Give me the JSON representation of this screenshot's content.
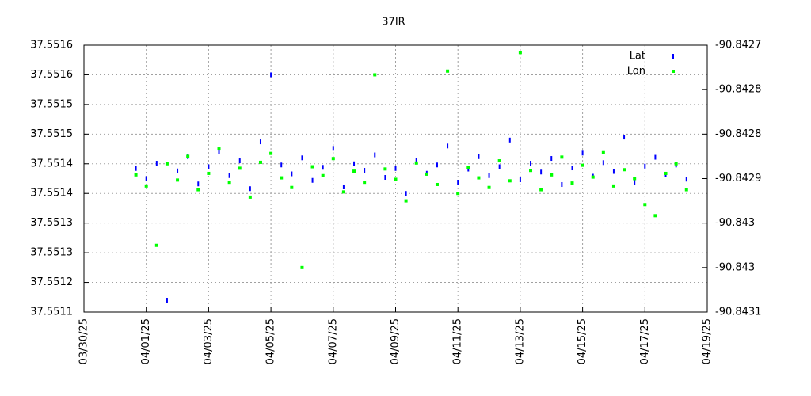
{
  "chart_data": {
    "type": "scatter",
    "title": "37IR",
    "x": [
      "2025-03-31T16:00",
      "2025-04-01T00:00",
      "2025-04-01T08:00",
      "2025-04-01T16:00",
      "2025-04-02T00:00",
      "2025-04-02T08:00",
      "2025-04-02T16:00",
      "2025-04-03T00:00",
      "2025-04-03T08:00",
      "2025-04-03T16:00",
      "2025-04-04T00:00",
      "2025-04-04T08:00",
      "2025-04-04T16:00",
      "2025-04-05T00:00",
      "2025-04-05T08:00",
      "2025-04-05T16:00",
      "2025-04-06T00:00",
      "2025-04-06T08:00",
      "2025-04-06T16:00",
      "2025-04-07T00:00",
      "2025-04-07T08:00",
      "2025-04-07T16:00",
      "2025-04-08T00:00",
      "2025-04-08T08:00",
      "2025-04-08T16:00",
      "2025-04-09T00:00",
      "2025-04-09T08:00",
      "2025-04-09T16:00",
      "2025-04-10T00:00",
      "2025-04-10T08:00",
      "2025-04-10T16:00",
      "2025-04-11T00:00",
      "2025-04-11T08:00",
      "2025-04-11T16:00",
      "2025-04-12T00:00",
      "2025-04-12T08:00",
      "2025-04-12T16:00",
      "2025-04-13T00:00",
      "2025-04-13T08:00",
      "2025-04-13T16:00",
      "2025-04-14T00:00",
      "2025-04-14T08:00",
      "2025-04-14T16:00",
      "2025-04-15T00:00",
      "2025-04-15T08:00",
      "2025-04-15T16:00",
      "2025-04-16T00:00",
      "2025-04-16T08:00",
      "2025-04-16T16:00",
      "2025-04-17T00:00",
      "2025-04-17T08:00",
      "2025-04-17T16:00",
      "2025-04-18T00:00",
      "2025-04-18T08:00"
    ],
    "series": [
      {
        "name": "Lat",
        "color": "#0000ff",
        "axis": "y",
        "values": [
          37.551392,
          37.551375,
          37.551401,
          37.55117,
          37.551388,
          37.551412,
          37.551366,
          37.551395,
          37.55142,
          37.55138,
          37.551405,
          37.551358,
          37.551437,
          37.55155,
          37.551398,
          37.551383,
          37.55141,
          37.551372,
          37.551394,
          37.551426,
          37.551361,
          37.5514,
          37.551389,
          37.551415,
          37.551377,
          37.551392,
          37.55135,
          37.551406,
          37.551384,
          37.551398,
          37.55143,
          37.551369,
          37.551391,
          37.551412,
          37.55138,
          37.551395,
          37.55144,
          37.551373,
          37.551401,
          37.551386,
          37.551409,
          37.551365,
          37.551393,
          37.551418,
          37.551379,
          37.551402,
          37.551387,
          37.551445,
          37.551369,
          37.551396,
          37.551411,
          37.551382,
          37.551398,
          37.551374
        ]
      },
      {
        "name": "Lon",
        "color": "#00ff00",
        "axis": "y2",
        "values": [
          -90.842895,
          -90.84291,
          -90.84299,
          -90.84288,
          -90.842902,
          -90.84287,
          -90.842915,
          -90.842893,
          -90.84286,
          -90.842905,
          -90.842886,
          -90.842925,
          -90.842878,
          -90.842866,
          -90.842899,
          -90.842912,
          -90.84302,
          -90.842884,
          -90.842896,
          -90.842873,
          -90.842918,
          -90.84289,
          -90.842905,
          -90.84276,
          -90.842887,
          -90.842901,
          -90.84293,
          -90.842879,
          -90.842894,
          -90.842908,
          -90.842755,
          -90.84292,
          -90.842885,
          -90.842899,
          -90.842912,
          -90.842876,
          -90.842903,
          -90.84273,
          -90.842889,
          -90.842915,
          -90.842895,
          -90.842871,
          -90.842906,
          -90.842882,
          -90.842898,
          -90.842865,
          -90.84291,
          -90.842888,
          -90.8429,
          -90.842935,
          -90.84295,
          -90.842893,
          -90.84288,
          -90.842915
        ]
      }
    ],
    "xlim": [
      "2025-03-30T00:00",
      "2025-04-19T00:00"
    ],
    "xticks": [
      {
        "value": "2025-03-30T00:00",
        "label": "03/30/25"
      },
      {
        "value": "2025-04-01T00:00",
        "label": "04/01/25"
      },
      {
        "value": "2025-04-03T00:00",
        "label": "04/03/25"
      },
      {
        "value": "2025-04-05T00:00",
        "label": "04/05/25"
      },
      {
        "value": "2025-04-07T00:00",
        "label": "04/07/25"
      },
      {
        "value": "2025-04-09T00:00",
        "label": "04/09/25"
      },
      {
        "value": "2025-04-11T00:00",
        "label": "04/11/25"
      },
      {
        "value": "2025-04-13T00:00",
        "label": "04/13/25"
      },
      {
        "value": "2025-04-15T00:00",
        "label": "04/15/25"
      },
      {
        "value": "2025-04-17T00:00",
        "label": "04/17/25"
      },
      {
        "value": "2025-04-19T00:00",
        "label": "04/19/25"
      }
    ],
    "ylim": [
      37.55115,
      37.5516
    ],
    "yticks": [
      {
        "value": 37.55115,
        "label": "37.5511"
      },
      {
        "value": 37.5512,
        "label": "37.5512"
      },
      {
        "value": 37.55125,
        "label": "37.5513"
      },
      {
        "value": 37.5513,
        "label": "37.5513"
      },
      {
        "value": 37.55135,
        "label": "37.5514"
      },
      {
        "value": 37.5514,
        "label": "37.5514"
      },
      {
        "value": 37.55145,
        "label": "37.5515"
      },
      {
        "value": 37.5515,
        "label": "37.5515"
      },
      {
        "value": 37.55155,
        "label": "37.5516"
      },
      {
        "value": 37.5516,
        "label": "37.5516"
      }
    ],
    "y2lim": [
      -90.84308,
      -90.84272
    ],
    "y2ticks": [
      {
        "value": -90.84308,
        "label": "-90.8431"
      },
      {
        "value": -90.84302,
        "label": "-90.843"
      },
      {
        "value": -90.84296,
        "label": "-90.843"
      },
      {
        "value": -90.8429,
        "label": "-90.8429"
      },
      {
        "value": -90.84284,
        "label": "-90.8428"
      },
      {
        "value": -90.84278,
        "label": "-90.8428"
      },
      {
        "value": -90.84272,
        "label": "-90.8427"
      }
    ],
    "grid": true,
    "legend": "top-right"
  }
}
